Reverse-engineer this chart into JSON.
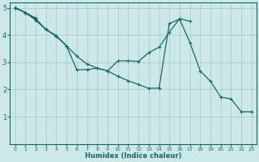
{
  "bg_color": "#cce8e8",
  "grid_color": "#aacccc",
  "line_color": "#1a6666",
  "xlabel": "Humidex (Indice chaleur)",
  "xlim": [
    -0.5,
    23.5
  ],
  "ylim": [
    0,
    5.2
  ],
  "yticks": [
    1,
    2,
    3,
    4,
    5
  ],
  "xticks": [
    0,
    1,
    2,
    3,
    4,
    5,
    6,
    7,
    8,
    9,
    10,
    11,
    12,
    13,
    14,
    15,
    16,
    17,
    18,
    19,
    20,
    21,
    22,
    23
  ],
  "lines": [
    {
      "x": [
        0,
        1,
        2
      ],
      "y": [
        5.0,
        4.82,
        4.62
      ]
    },
    {
      "x": [
        0,
        1,
        2,
        3,
        4,
        5
      ],
      "y": [
        5.0,
        4.82,
        4.6,
        4.2,
        3.95,
        3.6
      ]
    },
    {
      "x": [
        0,
        1,
        2,
        3,
        4,
        5,
        6,
        7,
        8,
        9,
        10,
        11,
        12,
        13,
        14,
        15,
        16,
        17
      ],
      "y": [
        5.0,
        4.82,
        4.55,
        4.2,
        3.97,
        3.6,
        2.72,
        2.73,
        2.78,
        2.68,
        3.05,
        3.05,
        3.03,
        3.35,
        3.55,
        4.1,
        4.6,
        4.5
      ]
    },
    {
      "x": [
        0,
        1,
        2,
        3,
        4,
        5,
        6,
        7,
        8,
        9,
        10,
        11,
        12,
        13,
        14,
        15,
        16,
        17,
        18,
        19,
        20,
        21,
        22,
        23
      ],
      "y": [
        5.0,
        4.82,
        4.55,
        4.2,
        3.97,
        3.6,
        3.22,
        2.93,
        2.78,
        2.68,
        2.48,
        2.32,
        2.18,
        2.04,
        2.05,
        4.42,
        4.58,
        3.72,
        2.68,
        2.3,
        1.72,
        1.65,
        1.18,
        1.18
      ]
    }
  ]
}
